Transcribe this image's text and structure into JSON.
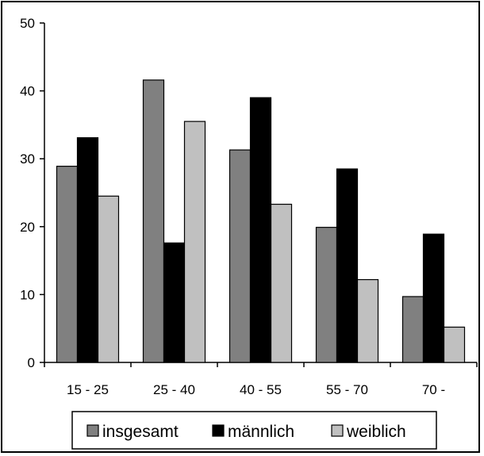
{
  "chart_data": {
    "type": "bar",
    "categories": [
      "15 - 25",
      "25 - 40",
      "40 - 55",
      "55 - 70",
      "70 -"
    ],
    "series": [
      {
        "name": "insgesamt",
        "values": [
          28.9,
          41.6,
          31.3,
          19.9,
          9.7
        ],
        "color": "#808080"
      },
      {
        "name": "männlich",
        "values": [
          33.1,
          17.6,
          39.0,
          28.5,
          18.9
        ],
        "color": "#000000"
      },
      {
        "name": "weiblich",
        "values": [
          24.5,
          35.5,
          23.3,
          12.2,
          5.2
        ],
        "color": "#c0c0c0"
      }
    ],
    "yticks": [
      "0",
      "10",
      "20",
      "30",
      "40",
      "50"
    ],
    "ylim": [
      0,
      50
    ],
    "grid": false,
    "legend": "bottom",
    "title": "",
    "xlabel": "",
    "ylabel": ""
  }
}
